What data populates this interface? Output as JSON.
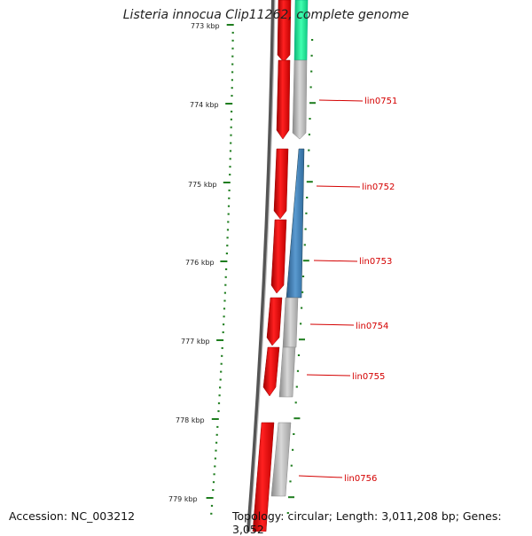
{
  "title": "Listeria innocua Clip11262, complete genome",
  "footer": {
    "accession": "Accession: NC_003212",
    "summary": "Topology: circular; Length: 3,011,208 bp; Genes: 3,052"
  },
  "colors": {
    "scale_tick": "#1e7d1e",
    "gene_forward": "#ff1010",
    "gene_teal": "#10d890",
    "gene_gray": "#bdbdbd",
    "gene_blue": "#3a78b0",
    "label": "#d40000"
  },
  "scale": {
    "unit": "kbp",
    "labels": [
      "773 kbp",
      "774 kbp",
      "775 kbp",
      "776 kbp",
      "777 kbp",
      "778 kbp",
      "779 kbp"
    ]
  },
  "genes": [
    {
      "id": "lin0751",
      "label": "lin0751"
    },
    {
      "id": "lin0752",
      "label": "lin0752"
    },
    {
      "id": "lin0753",
      "label": "lin0753"
    },
    {
      "id": "lin0754",
      "label": "lin0754"
    },
    {
      "id": "lin0755",
      "label": "lin0755"
    },
    {
      "id": "lin0756",
      "label": "lin0756"
    }
  ]
}
